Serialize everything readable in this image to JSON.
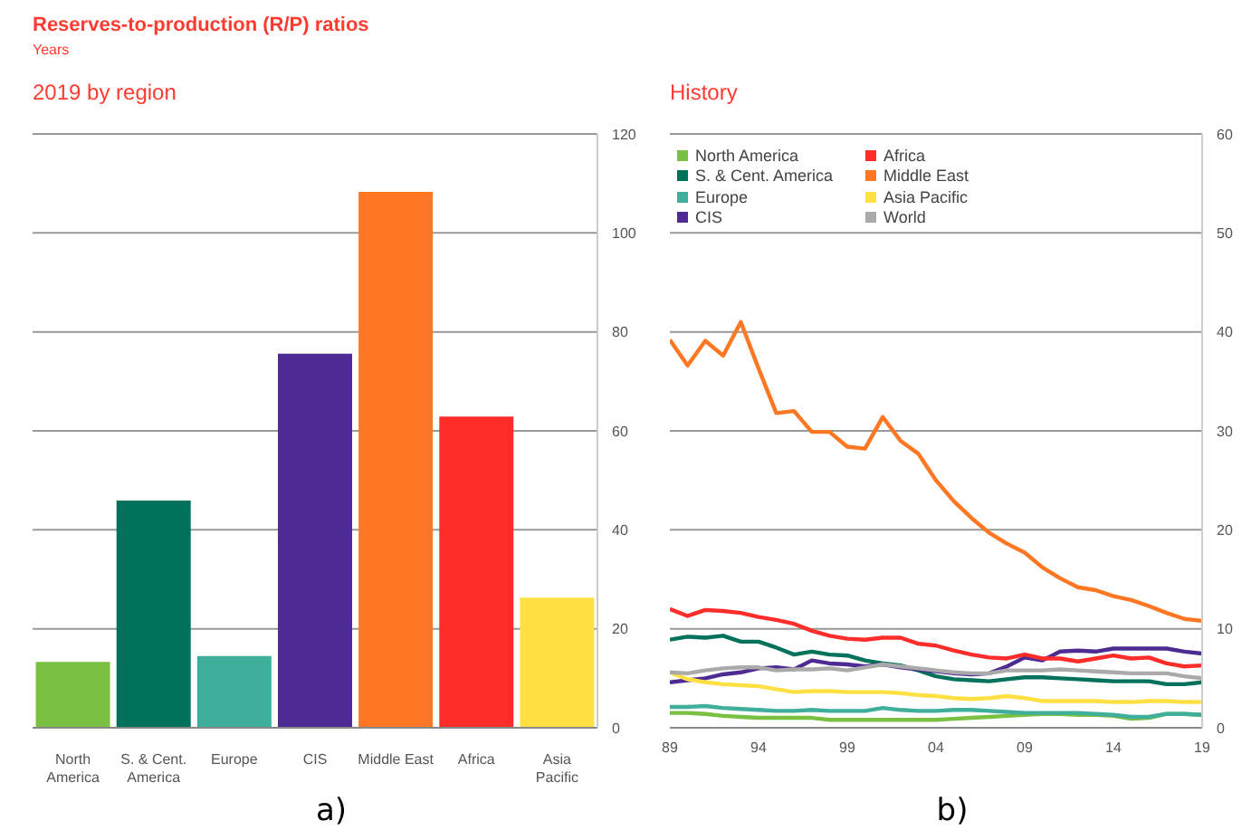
{
  "chart_data": [
    {
      "type": "bar",
      "title": "Reserves-to-production (R/P) ratios",
      "ylabel": "Years",
      "subtitle": "2019 by region",
      "categories": [
        "North America",
        "S. & Cent. America",
        "Europe",
        "CIS",
        "Middle East",
        "Africa",
        "Asia Pacific"
      ],
      "values": [
        13.3,
        45.9,
        14.5,
        75.6,
        108.3,
        62.9,
        26.3
      ],
      "colors": [
        "#7ac143",
        "#00715a",
        "#3fae9a",
        "#4e2a93",
        "#ff7723",
        "#ff2d2a",
        "#ffe042"
      ],
      "ylim": [
        0,
        120
      ],
      "yticks": [
        0,
        20,
        40,
        60,
        80,
        100,
        120
      ],
      "grid": "y",
      "annotations": [
        "a)"
      ]
    },
    {
      "type": "line",
      "title": "History",
      "legend": "top left",
      "grid": "y",
      "annotations": [
        "b)"
      ],
      "x": [
        1989,
        1990,
        1991,
        1992,
        1993,
        1994,
        1995,
        1996,
        1997,
        1998,
        1999,
        2000,
        2001,
        2002,
        2003,
        2004,
        2005,
        2006,
        2007,
        2008,
        2009,
        2010,
        2011,
        2012,
        2013,
        2014,
        2015,
        2016,
        2017,
        2018,
        2019
      ],
      "xlim": [
        1989,
        2019
      ],
      "xticks": [
        {
          "value": 1989,
          "label": "89"
        },
        {
          "value": 1994,
          "label": "94"
        },
        {
          "value": 1999,
          "label": "99"
        },
        {
          "value": 2004,
          "label": "04"
        },
        {
          "value": 2009,
          "label": "09"
        },
        {
          "value": 2014,
          "label": "14"
        },
        {
          "value": 2019,
          "label": "19"
        }
      ],
      "ylim": [
        0,
        60
      ],
      "yticks": [
        0,
        10,
        20,
        30,
        40,
        50,
        60
      ],
      "series": [
        {
          "name": "North America",
          "color": "#7ac143",
          "values": [
            1.5,
            1.5,
            1.4,
            1.2,
            1.1,
            1.0,
            1.0,
            1.0,
            1.0,
            0.8,
            0.8,
            0.8,
            0.8,
            0.8,
            0.8,
            0.8,
            0.9,
            1.0,
            1.1,
            1.2,
            1.3,
            1.4,
            1.4,
            1.3,
            1.3,
            1.2,
            0.9,
            1.0,
            1.4,
            1.4,
            1.3
          ]
        },
        {
          "name": "S. & Cent. America",
          "color": "#00715a",
          "values": [
            8.9,
            9.2,
            9.1,
            9.3,
            8.7,
            8.7,
            8.1,
            7.4,
            7.7,
            7.4,
            7.3,
            6.8,
            6.5,
            6.3,
            5.8,
            5.2,
            4.9,
            4.8,
            4.7,
            4.9,
            5.1,
            5.1,
            5.0,
            4.9,
            4.8,
            4.7,
            4.7,
            4.7,
            4.4,
            4.4,
            4.6
          ]
        },
        {
          "name": "Europe",
          "color": "#3fae9a",
          "values": [
            2.1,
            2.1,
            2.2,
            2.0,
            1.9,
            1.8,
            1.7,
            1.7,
            1.8,
            1.7,
            1.7,
            1.7,
            2.0,
            1.8,
            1.7,
            1.7,
            1.8,
            1.8,
            1.7,
            1.6,
            1.5,
            1.5,
            1.5,
            1.5,
            1.4,
            1.3,
            1.1,
            1.1,
            1.4,
            1.4,
            1.3
          ]
        },
        {
          "name": "CIS",
          "color": "#4e2a93",
          "values": [
            4.6,
            4.8,
            5.0,
            5.4,
            5.6,
            6.0,
            6.1,
            5.9,
            6.8,
            6.5,
            6.4,
            6.2,
            6.4,
            6.1,
            5.9,
            5.7,
            5.5,
            5.4,
            5.5,
            6.2,
            7.1,
            6.8,
            7.7,
            7.8,
            7.7,
            8.0,
            8.0,
            8.0,
            8.0,
            7.7,
            7.5
          ]
        },
        {
          "name": "Africa",
          "color": "#ff2d2a",
          "values": [
            12.0,
            11.3,
            11.9,
            11.8,
            11.6,
            11.2,
            10.9,
            10.5,
            9.8,
            9.3,
            9.0,
            8.9,
            9.1,
            9.1,
            8.5,
            8.3,
            7.8,
            7.4,
            7.1,
            7.0,
            7.4,
            7.0,
            7.0,
            6.7,
            7.0,
            7.3,
            7.0,
            7.1,
            6.5,
            6.2,
            6.3
          ]
        },
        {
          "name": "Middle East",
          "color": "#ff7723",
          "values": [
            39.2,
            36.6,
            39.1,
            37.6,
            41.0,
            36.3,
            31.8,
            32.0,
            29.9,
            29.9,
            28.4,
            28.2,
            31.4,
            29.0,
            27.7,
            25.0,
            22.9,
            21.2,
            19.7,
            18.6,
            17.7,
            16.2,
            15.1,
            14.2,
            13.9,
            13.3,
            12.9,
            12.3,
            11.6,
            11.0,
            10.8
          ]
        },
        {
          "name": "Asia Pacific",
          "color": "#ffe042",
          "values": [
            5.6,
            4.9,
            4.6,
            4.4,
            4.3,
            4.2,
            3.9,
            3.6,
            3.7,
            3.7,
            3.6,
            3.6,
            3.6,
            3.5,
            3.3,
            3.2,
            3.0,
            2.9,
            3.0,
            3.2,
            3.0,
            2.7,
            2.7,
            2.7,
            2.7,
            2.6,
            2.6,
            2.7,
            2.7,
            2.6,
            2.6
          ]
        },
        {
          "name": "World",
          "color": "#aaaaaa",
          "values": [
            5.6,
            5.5,
            5.8,
            6.0,
            6.1,
            6.1,
            5.8,
            5.9,
            5.9,
            6.0,
            5.8,
            6.1,
            6.4,
            6.2,
            6.0,
            5.8,
            5.6,
            5.5,
            5.5,
            5.8,
            5.8,
            5.8,
            5.9,
            5.8,
            5.7,
            5.6,
            5.5,
            5.5,
            5.5,
            5.2,
            5.0
          ]
        }
      ]
    }
  ]
}
